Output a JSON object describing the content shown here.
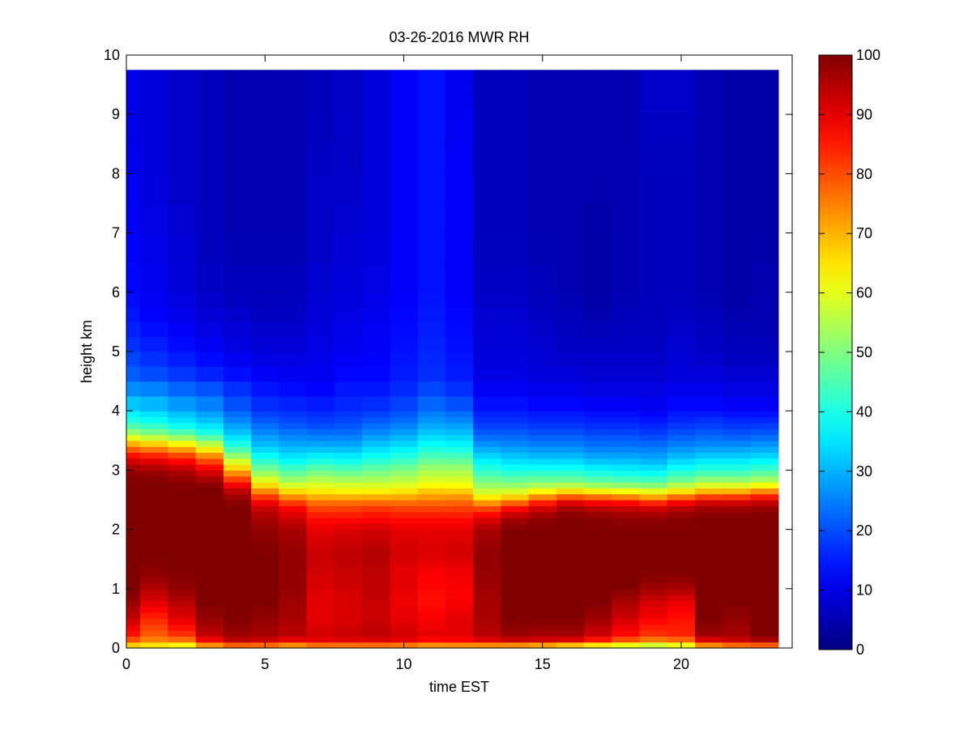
{
  "chart_data": {
    "type": "heatmap",
    "title": "03-26-2016 MWR RH",
    "xlabel": "time EST",
    "ylabel": "height km",
    "xlim": [
      0,
      24
    ],
    "ylim": [
      0,
      10
    ],
    "xticks": [
      0,
      5,
      10,
      15,
      20
    ],
    "yticks": [
      0,
      1,
      2,
      3,
      4,
      5,
      6,
      7,
      8,
      9,
      10
    ],
    "colorbar": {
      "label": "",
      "range": [
        0,
        100
      ],
      "ticks": [
        0,
        10,
        20,
        30,
        40,
        50,
        60,
        70,
        80,
        90,
        100
      ],
      "colormap": "jet"
    },
    "x_edges": [
      0,
      0.5,
      1.5,
      2.5,
      3.5,
      4.5,
      5.5,
      6.5,
      7.5,
      8.5,
      9.5,
      10.5,
      11.5,
      12.5,
      13.5,
      14.5,
      15.5,
      16.5,
      17.5,
      18.5,
      19.5,
      20.5,
      21.5,
      22.5,
      23.5
    ],
    "y_edges": [
      0,
      0.1,
      0.2,
      0.3,
      0.4,
      0.5,
      0.6,
      0.7,
      0.8,
      0.9,
      1.0,
      1.1,
      1.2,
      1.3,
      1.4,
      1.5,
      1.6,
      1.7,
      1.8,
      1.9,
      2.0,
      2.1,
      2.2,
      2.3,
      2.4,
      2.5,
      2.6,
      2.7,
      2.8,
      2.9,
      3.0,
      3.1,
      3.2,
      3.3,
      3.4,
      3.5,
      3.6,
      3.7,
      3.8,
      3.9,
      4.0,
      4.25,
      4.5,
      4.75,
      5.0,
      5.25,
      5.5,
      5.75,
      6.0,
      6.5,
      7.0,
      7.5,
      8.0,
      8.5,
      9.0,
      9.5,
      9.75
    ],
    "profile_heights_km": [
      0,
      0.1,
      0.2,
      0.5,
      0.8,
      1.0,
      1.3,
      1.6,
      2.0,
      2.2,
      2.4,
      2.5,
      2.6,
      2.7,
      2.8,
      3.0,
      3.2,
      3.4,
      3.6,
      3.8,
      4.0,
      4.3,
      4.6,
      5.0,
      5.5,
      6.0,
      7.0,
      8.0,
      9.0,
      9.75
    ],
    "rh_profiles_percent": [
      [
        60,
        75,
        85,
        93,
        98,
        100,
        100,
        100,
        100,
        100,
        100,
        100,
        100,
        100,
        100,
        98,
        90,
        75,
        55,
        42,
        35,
        28,
        22,
        18,
        15,
        13,
        12,
        11,
        10,
        10
      ],
      [
        58,
        72,
        78,
        84,
        91,
        95,
        99,
        100,
        100,
        100,
        100,
        100,
        100,
        100,
        100,
        97,
        88,
        72,
        52,
        40,
        33,
        27,
        20,
        16,
        13,
        11,
        10,
        9,
        9,
        9
      ],
      [
        55,
        72,
        82,
        90,
        95,
        98,
        100,
        100,
        100,
        100,
        100,
        100,
        100,
        100,
        99,
        95,
        85,
        68,
        48,
        36,
        30,
        24,
        18,
        14,
        11,
        9,
        8,
        7,
        7,
        7
      ],
      [
        62,
        85,
        93,
        98,
        100,
        100,
        100,
        100,
        100,
        100,
        100,
        100,
        100,
        100,
        98,
        90,
        78,
        60,
        42,
        33,
        27,
        22,
        16,
        12,
        9,
        7,
        6,
        6,
        6,
        6
      ],
      [
        65,
        92,
        97,
        100,
        100,
        100,
        100,
        100,
        100,
        100,
        100,
        98,
        96,
        92,
        85,
        70,
        55,
        42,
        33,
        27,
        22,
        18,
        14,
        10,
        8,
        6,
        5,
        5,
        5,
        5
      ],
      [
        65,
        90,
        96,
        98,
        100,
        100,
        100,
        100,
        98,
        96,
        92,
        86,
        78,
        70,
        62,
        50,
        40,
        32,
        27,
        22,
        18,
        15,
        12,
        9,
        7,
        6,
        5,
        5,
        5,
        5
      ],
      [
        62,
        86,
        94,
        96,
        97,
        98,
        98,
        98,
        96,
        92,
        86,
        78,
        70,
        62,
        55,
        45,
        36,
        30,
        25,
        20,
        17,
        14,
        11,
        9,
        7,
        6,
        5,
        5,
        5,
        5
      ],
      [
        66,
        88,
        92,
        90,
        90,
        91,
        92,
        93,
        90,
        86,
        80,
        74,
        67,
        62,
        57,
        48,
        38,
        30,
        24,
        19,
        16,
        13,
        11,
        10,
        9,
        8,
        7,
        7,
        6,
        6
      ],
      [
        66,
        88,
        93,
        91,
        91,
        92,
        93,
        94,
        91,
        86,
        80,
        74,
        66,
        61,
        56,
        46,
        37,
        30,
        24,
        20,
        17,
        15,
        13,
        11,
        10,
        9,
        8,
        7,
        7,
        7
      ],
      [
        66,
        88,
        94,
        93,
        93,
        94,
        94,
        95,
        92,
        87,
        81,
        74,
        67,
        61,
        56,
        48,
        40,
        33,
        27,
        22,
        18,
        15,
        13,
        12,
        11,
        10,
        9,
        9,
        9,
        9
      ],
      [
        64,
        88,
        92,
        90,
        89,
        90,
        90,
        92,
        90,
        86,
        80,
        74,
        68,
        62,
        57,
        50,
        42,
        35,
        29,
        24,
        20,
        17,
        15,
        14,
        13,
        12,
        12,
        12,
        12,
        12
      ],
      [
        62,
        85,
        90,
        88,
        86,
        87,
        88,
        91,
        90,
        86,
        80,
        75,
        70,
        66,
        60,
        54,
        46,
        39,
        33,
        28,
        24,
        20,
        17,
        16,
        15,
        14,
        14,
        14,
        14,
        14
      ],
      [
        62,
        86,
        90,
        90,
        88,
        88,
        89,
        92,
        90,
        86,
        80,
        76,
        70,
        65,
        60,
        54,
        46,
        38,
        32,
        27,
        22,
        18,
        15,
        14,
        13,
        12,
        12,
        12,
        11,
        11
      ],
      [
        60,
        88,
        94,
        96,
        96,
        97,
        98,
        98,
        96,
        90,
        78,
        68,
        60,
        55,
        50,
        42,
        35,
        28,
        22,
        18,
        15,
        12,
        10,
        9,
        8,
        7,
        6,
        6,
        6,
        6
      ],
      [
        58,
        90,
        97,
        100,
        100,
        100,
        100,
        100,
        100,
        96,
        84,
        72,
        62,
        55,
        49,
        40,
        33,
        27,
        22,
        18,
        15,
        12,
        10,
        9,
        8,
        7,
        6,
        6,
        6,
        6
      ],
      [
        56,
        88,
        96,
        100,
        100,
        100,
        100,
        100,
        100,
        98,
        90,
        80,
        68,
        58,
        50,
        40,
        32,
        26,
        21,
        17,
        14,
        11,
        9,
        8,
        7,
        6,
        5,
        5,
        5,
        5
      ],
      [
        52,
        86,
        96,
        100,
        100,
        100,
        100,
        100,
        100,
        100,
        95,
        86,
        72,
        60,
        50,
        40,
        32,
        26,
        21,
        17,
        14,
        11,
        9,
        7,
        6,
        5,
        5,
        5,
        5,
        5
      ],
      [
        50,
        80,
        92,
        97,
        100,
        100,
        100,
        100,
        100,
        99,
        93,
        84,
        70,
        58,
        48,
        38,
        30,
        24,
        20,
        16,
        13,
        10,
        8,
        7,
        5,
        4,
        4,
        5,
        5,
        5
      ],
      [
        48,
        74,
        86,
        92,
        96,
        100,
        100,
        100,
        100,
        98,
        92,
        82,
        68,
        56,
        47,
        37,
        30,
        24,
        20,
        16,
        13,
        10,
        8,
        7,
        6,
        5,
        5,
        5,
        5,
        5
      ],
      [
        46,
        70,
        82,
        88,
        92,
        97,
        100,
        100,
        100,
        98,
        90,
        78,
        65,
        55,
        46,
        36,
        29,
        24,
        19,
        15,
        12,
        10,
        8,
        7,
        6,
        6,
        6,
        6,
        7,
        7
      ],
      [
        50,
        72,
        84,
        86,
        90,
        96,
        100,
        100,
        100,
        99,
        93,
        84,
        70,
        60,
        50,
        40,
        32,
        26,
        21,
        17,
        14,
        11,
        9,
        8,
        7,
        6,
        6,
        6,
        7,
        7
      ],
      [
        62,
        86,
        97,
        100,
        100,
        100,
        100,
        100,
        100,
        100,
        96,
        88,
        75,
        64,
        54,
        42,
        34,
        27,
        22,
        18,
        14,
        11,
        9,
        7,
        6,
        5,
        5,
        5,
        5,
        5
      ],
      [
        64,
        90,
        96,
        98,
        100,
        100,
        100,
        100,
        100,
        100,
        96,
        88,
        76,
        64,
        54,
        42,
        34,
        27,
        21,
        17,
        13,
        10,
        8,
        6,
        5,
        4,
        4,
        4,
        4,
        4
      ],
      [
        66,
        92,
        100,
        100,
        100,
        100,
        100,
        100,
        100,
        100,
        97,
        90,
        80,
        68,
        56,
        44,
        35,
        28,
        22,
        17,
        13,
        10,
        8,
        6,
        5,
        5,
        4,
        4,
        4,
        4
      ]
    ],
    "grid": false,
    "legend": "none"
  }
}
